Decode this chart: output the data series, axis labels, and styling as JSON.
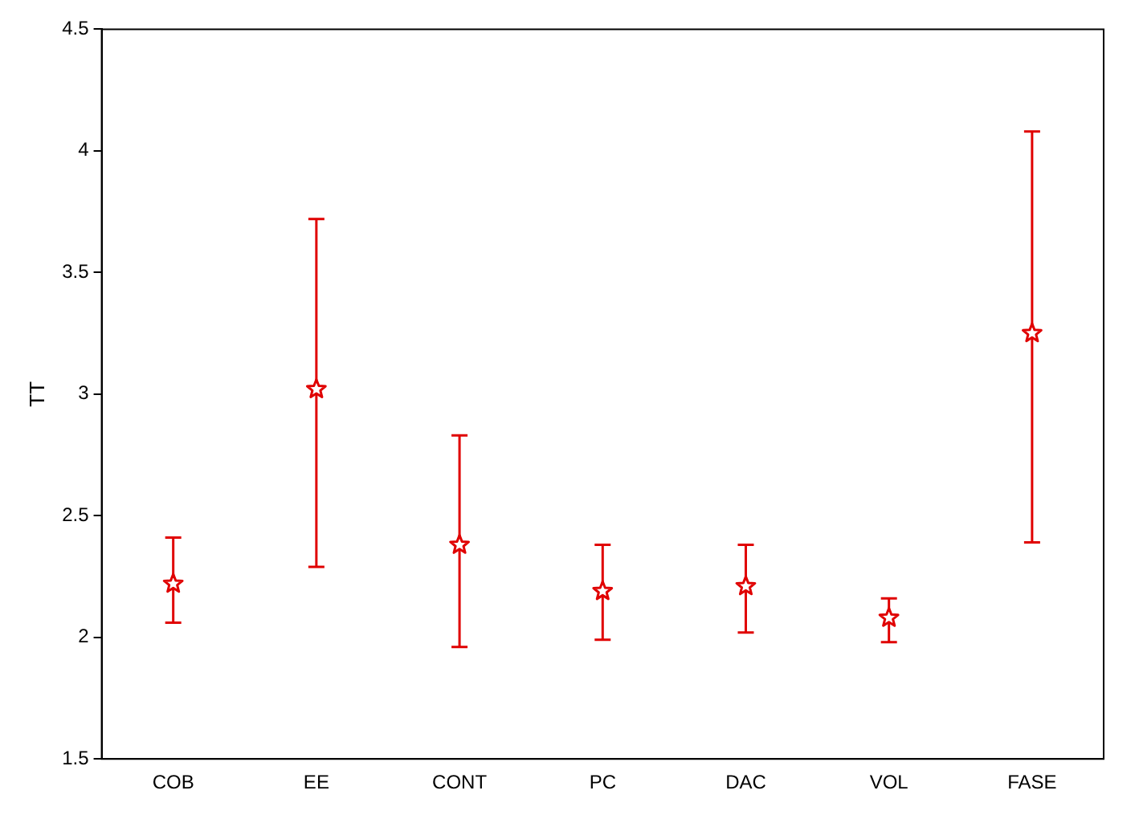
{
  "chart_data": {
    "type": "scatter",
    "ylabel": "TT",
    "categories": [
      "COB",
      "EE",
      "CONT",
      "PC",
      "DAC",
      "VOL",
      "FASE"
    ],
    "series": [
      {
        "color": "#e00000",
        "values": [
          2.22,
          3.02,
          2.38,
          2.19,
          2.21,
          2.08,
          3.25
        ],
        "errors": [
          [
            2.06,
            2.41
          ],
          [
            2.29,
            3.72
          ],
          [
            1.96,
            2.83
          ],
          [
            1.99,
            2.38
          ],
          [
            2.02,
            2.38
          ],
          [
            1.98,
            2.16
          ],
          [
            2.39,
            4.08
          ]
        ]
      }
    ],
    "ylim": [
      1.5,
      4.5
    ],
    "yticks": [
      1.5,
      2,
      2.5,
      3,
      3.5,
      4,
      4.5
    ],
    "marker": "star",
    "grid": false,
    "legend": false
  }
}
